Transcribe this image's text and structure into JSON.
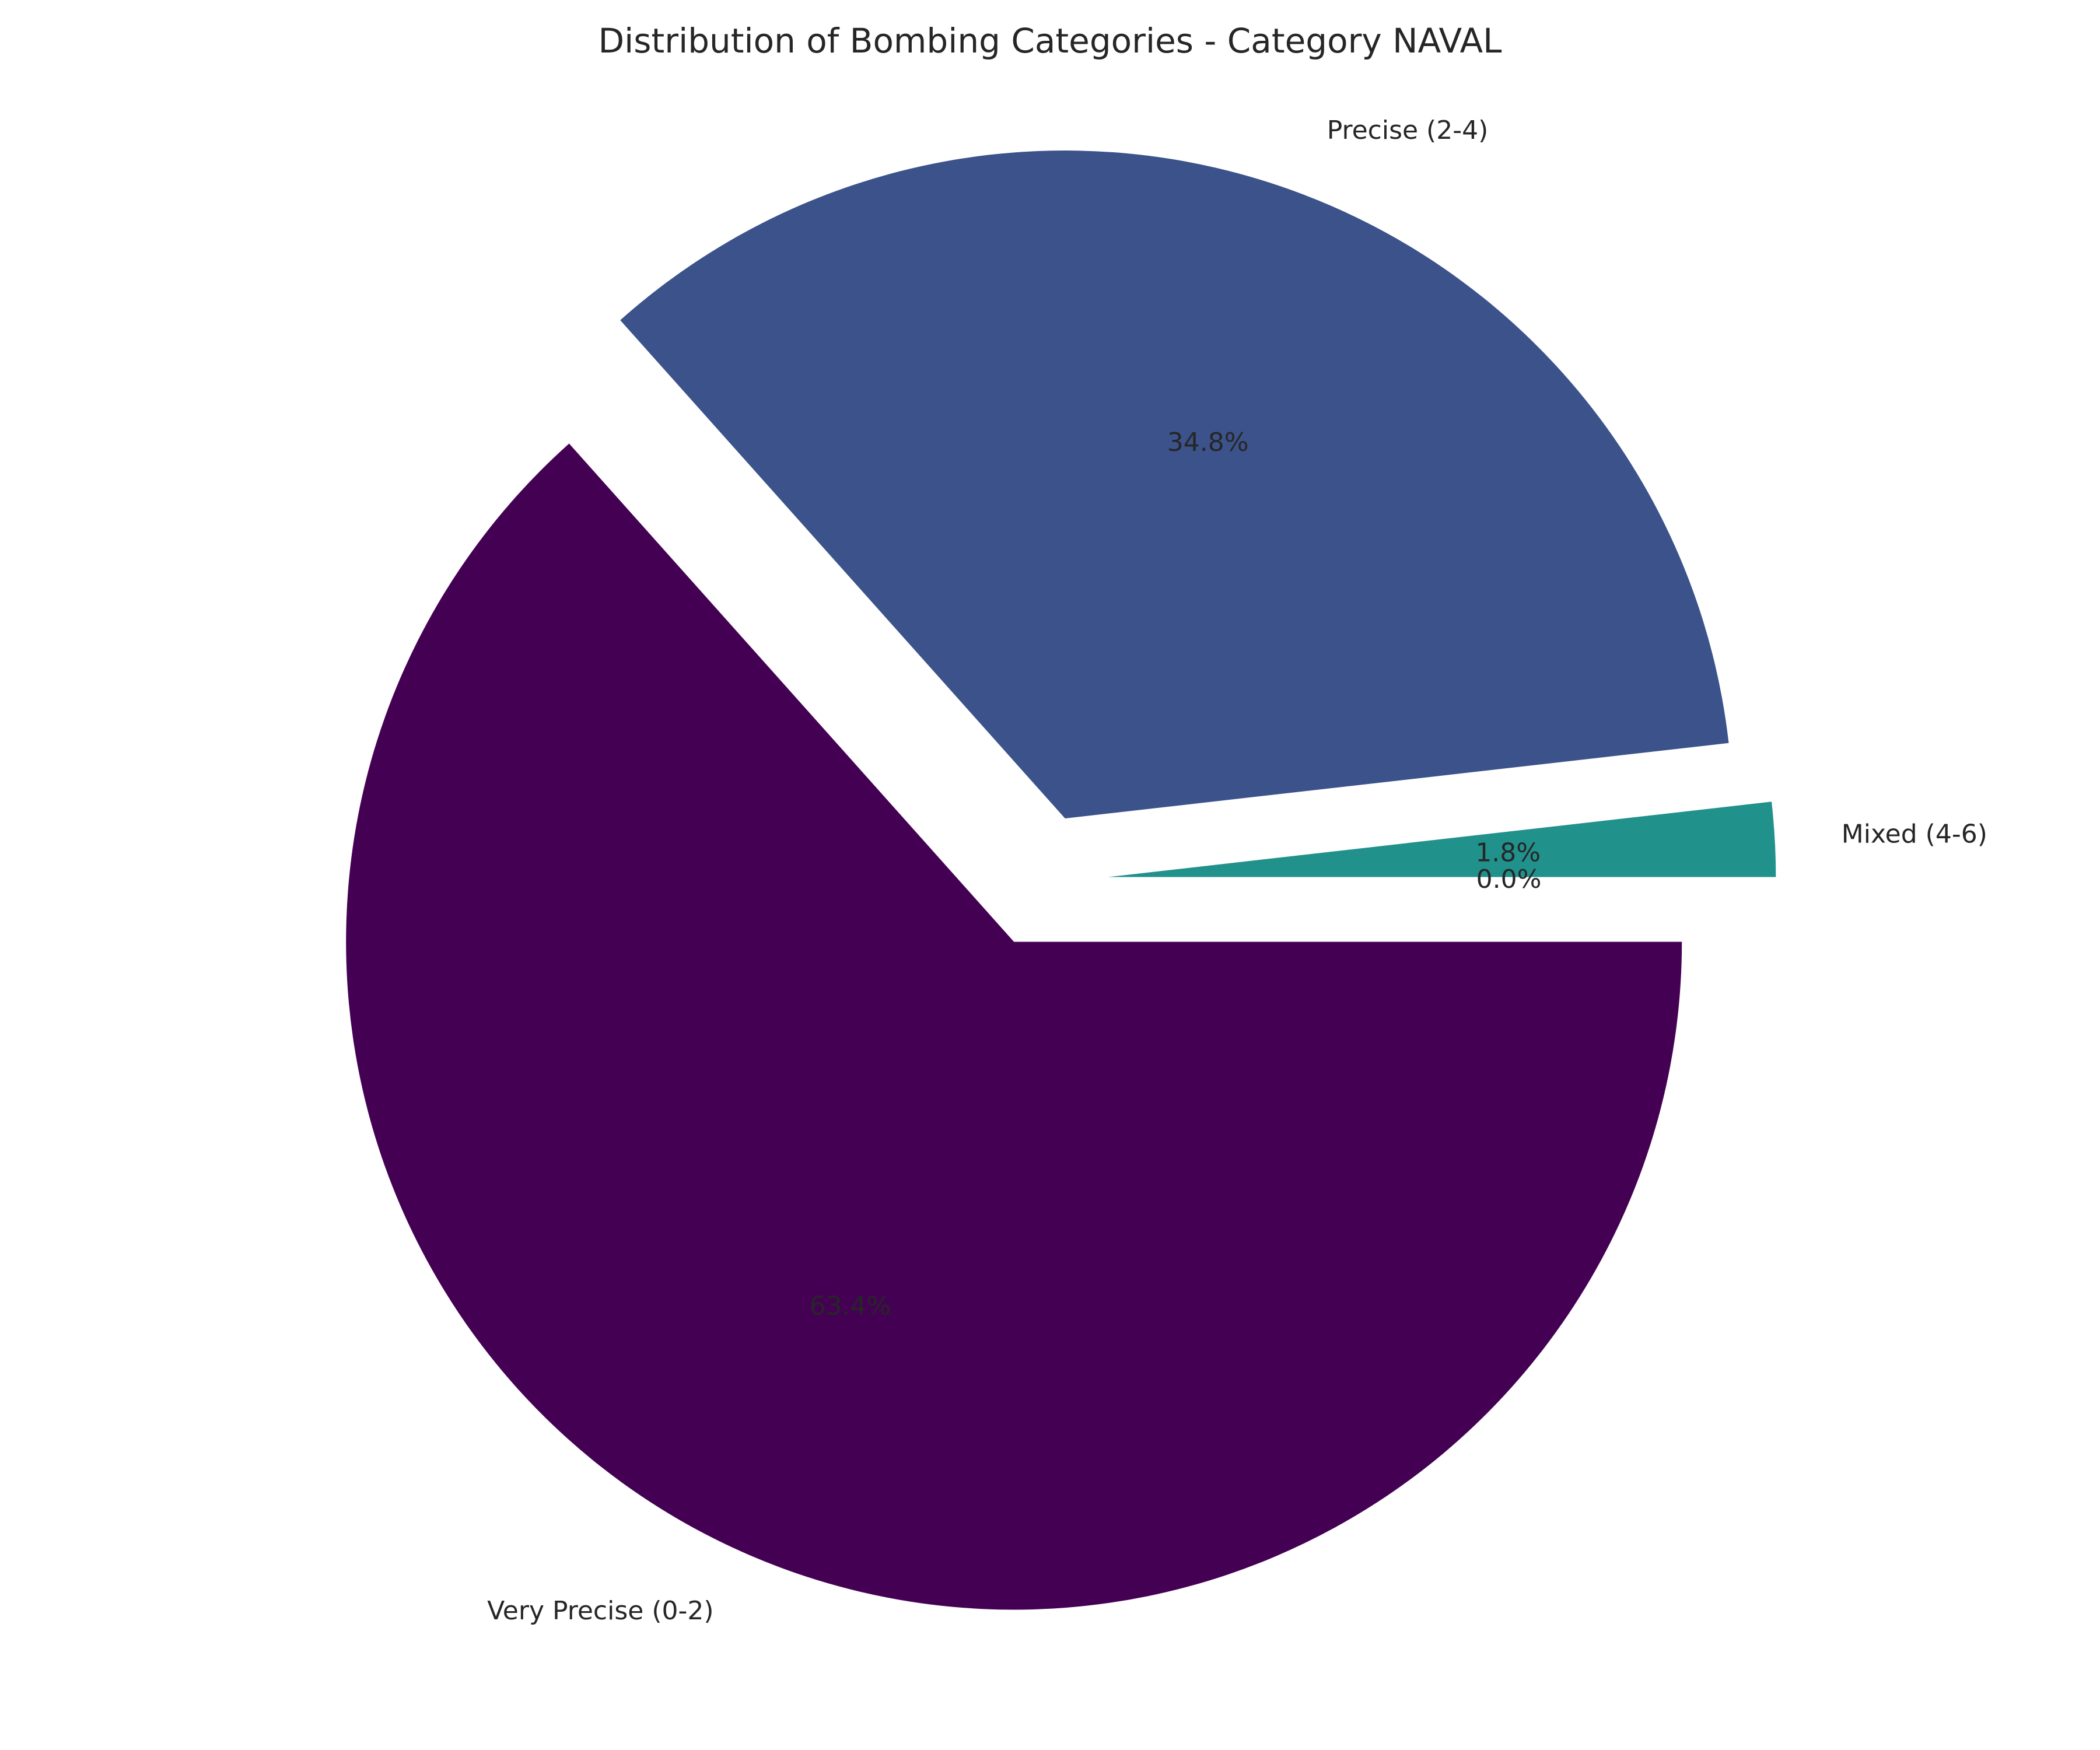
{
  "chart_data": {
    "type": "pie",
    "title": "Distribution of Bombing Categories - Category NAVAL",
    "categories": [
      "Very Precise (0-2)",
      "Precise (2-4)",
      "Mixed (4-6)",
      ""
    ],
    "values": [
      63.4,
      34.8,
      1.8,
      0.0
    ],
    "percent_labels": [
      "63.4%",
      "34.8%",
      "1.8%",
      "0.0%"
    ],
    "colors": [
      "#440154",
      "#3b528b",
      "#21918c",
      "#5ec962"
    ],
    "explode": [
      0.1,
      0.1,
      0.1,
      0.1
    ],
    "start_angle_deg": 0,
    "direction": "clockwise"
  }
}
